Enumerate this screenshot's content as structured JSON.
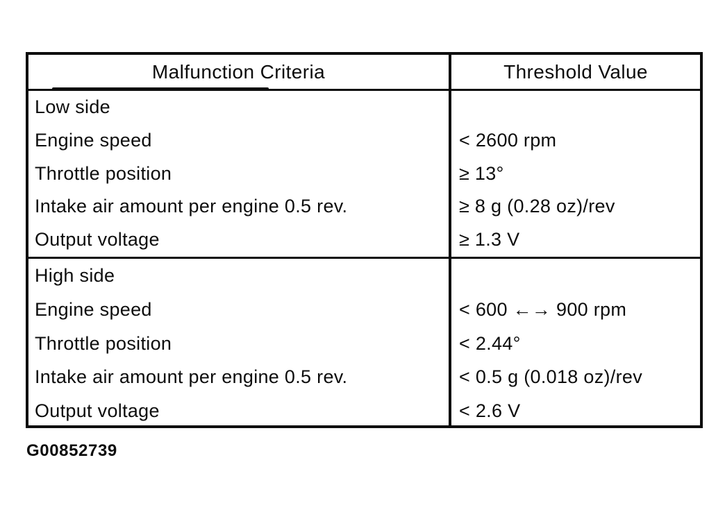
{
  "document": {
    "table": {
      "headers": [
        "Malfunction Criteria",
        "Threshold Value"
      ],
      "sections": [
        {
          "title": "Low side",
          "rows": [
            {
              "criteria": "Engine speed",
              "threshold": "< 2600 rpm"
            },
            {
              "criteria": "Throttle position",
              "threshold": "≥ 13°"
            },
            {
              "criteria": "Intake air amount per engine 0.5 rev.",
              "threshold": "≥ 8 g (0.28 oz)/rev"
            },
            {
              "criteria": "Output voltage",
              "threshold": "≥ 1.3 V"
            }
          ]
        },
        {
          "title": "High side",
          "rows": [
            {
              "criteria": "Engine speed",
              "threshold": "< 600 ←→ 900 rpm"
            },
            {
              "criteria": "Throttle position",
              "threshold": "< 2.44°"
            },
            {
              "criteria": "Intake air amount per engine 0.5 rev.",
              "threshold": "< 0.5 g (0.018 oz)/rev"
            },
            {
              "criteria": "Output voltage",
              "threshold": "< 2.6 V"
            }
          ]
        }
      ]
    },
    "caption": "G00852739",
    "colors": {
      "ink": "#0c0c0c",
      "background": "#ffffff"
    }
  }
}
